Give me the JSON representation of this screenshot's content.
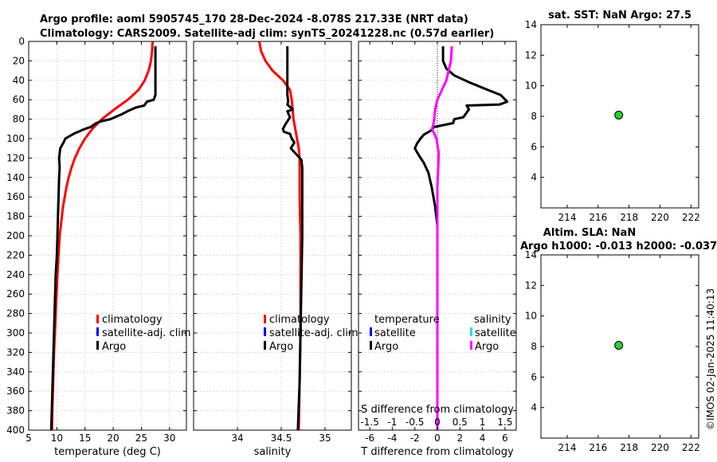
{
  "titles": {
    "line1": "Argo profile: aoml 5905745_170 28-Dec-2024 -8.078S 217.33E (NRT data)",
    "line2": "Climatology: CARS2009. Satellite-adj clim: synTS_20241228.nc (0.57d earlier)",
    "sst": "sat. SST: NaN Argo: 27.5",
    "sla": "Altim. SLA: NaN",
    "h": "Argo h1000: -0.013 h2000: -0.037"
  },
  "watermark": "©IMOS 02-Jan-2025 11:40:13",
  "colors": {
    "climatology": "#ff0000",
    "satellite": "#0000ff",
    "argo": "#000000",
    "sat_sal": "#00e5ee",
    "argo_sal": "#ff00ff",
    "marker": "#33cc33"
  },
  "legend": {
    "climatology": "climatology",
    "satellite_adj": "satellite-adj. clim",
    "argo": "Argo",
    "temperature": "temperature",
    "salinity": "salinity",
    "satellite": "satellite"
  },
  "chart_data": [
    {
      "id": "temperature",
      "type": "line",
      "xlabel": "temperature (deg C)",
      "ylabel": "",
      "xlim": [
        5,
        33
      ],
      "ylim": [
        400,
        0
      ],
      "xticks": [
        5,
        10,
        15,
        20,
        25,
        30
      ],
      "yticks": [
        0,
        20,
        40,
        60,
        80,
        100,
        120,
        140,
        160,
        180,
        200,
        220,
        240,
        260,
        280,
        300,
        320,
        340,
        360,
        380,
        400
      ],
      "series": [
        {
          "name": "climatology",
          "color": "#ff0000",
          "points": [
            [
              27.0,
              0
            ],
            [
              26.9,
              10
            ],
            [
              26.7,
              20
            ],
            [
              26.3,
              30
            ],
            [
              25.6,
              40
            ],
            [
              24.5,
              50
            ],
            [
              22.6,
              60
            ],
            [
              20.2,
              70
            ],
            [
              18.0,
              80
            ],
            [
              16.3,
              90
            ],
            [
              15.0,
              100
            ],
            [
              14.0,
              110
            ],
            [
              13.2,
              120
            ],
            [
              12.6,
              130
            ],
            [
              12.1,
              140
            ],
            [
              11.7,
              150
            ],
            [
              11.4,
              160
            ],
            [
              11.1,
              170
            ],
            [
              10.9,
              180
            ],
            [
              10.7,
              190
            ],
            [
              10.5,
              200
            ],
            [
              10.3,
              220
            ],
            [
              10.1,
              240
            ],
            [
              9.95,
              260
            ],
            [
              9.8,
              280
            ],
            [
              9.65,
              300
            ],
            [
              9.5,
              320
            ],
            [
              9.4,
              340
            ],
            [
              9.3,
              360
            ],
            [
              9.2,
              380
            ],
            [
              9.15,
              400
            ]
          ]
        },
        {
          "name": "argo",
          "color": "#000000",
          "points": [
            [
              27.5,
              5
            ],
            [
              27.5,
              20
            ],
            [
              27.5,
              40
            ],
            [
              27.5,
              55
            ],
            [
              27.2,
              60
            ],
            [
              26.0,
              62
            ],
            [
              25.5,
              66
            ],
            [
              24.0,
              68
            ],
            [
              22.5,
              72
            ],
            [
              21.5,
              75
            ],
            [
              19.5,
              80
            ],
            [
              18.0,
              82
            ],
            [
              17.0,
              84
            ],
            [
              16.0,
              88
            ],
            [
              15.0,
              90
            ],
            [
              13.0,
              95
            ],
            [
              11.5,
              100
            ],
            [
              11.2,
              104
            ],
            [
              10.6,
              110
            ],
            [
              10.4,
              120
            ],
            [
              10.5,
              130
            ],
            [
              10.4,
              140
            ],
            [
              10.3,
              160
            ],
            [
              10.2,
              180
            ],
            [
              10.1,
              200
            ],
            [
              10.0,
              220
            ],
            [
              9.8,
              240
            ],
            [
              9.7,
              260
            ],
            [
              9.6,
              280
            ],
            [
              9.5,
              300
            ],
            [
              9.4,
              320
            ],
            [
              9.3,
              340
            ],
            [
              9.2,
              360
            ],
            [
              9.1,
              380
            ],
            [
              9.0,
              400
            ]
          ]
        }
      ],
      "legend_entries": [
        "climatology",
        "satellite-adj. clim",
        "Argo"
      ]
    },
    {
      "id": "salinity",
      "type": "line",
      "xlabel": "salinity",
      "ylabel": "",
      "xlim": [
        33.5,
        35.3
      ],
      "ylim": [
        400,
        0
      ],
      "xticks": [
        34,
        34.5,
        35
      ],
      "series": [
        {
          "name": "climatology",
          "color": "#ff0000",
          "points": [
            [
              34.25,
              0
            ],
            [
              34.27,
              10
            ],
            [
              34.32,
              20
            ],
            [
              34.4,
              30
            ],
            [
              34.52,
              40
            ],
            [
              34.6,
              50
            ],
            [
              34.62,
              60
            ],
            [
              34.63,
              70
            ],
            [
              34.64,
              80
            ],
            [
              34.66,
              90
            ],
            [
              34.68,
              100
            ],
            [
              34.7,
              110
            ],
            [
              34.71,
              120
            ],
            [
              34.71,
              140
            ],
            [
              34.71,
              160
            ],
            [
              34.72,
              200
            ],
            [
              34.72,
              250
            ],
            [
              34.72,
              300
            ],
            [
              34.71,
              350
            ],
            [
              34.7,
              400
            ]
          ]
        },
        {
          "name": "argo",
          "color": "#000000",
          "points": [
            [
              34.57,
              5
            ],
            [
              34.57,
              20
            ],
            [
              34.57,
              40
            ],
            [
              34.57,
              55
            ],
            [
              34.58,
              62
            ],
            [
              34.57,
              65
            ],
            [
              34.63,
              70
            ],
            [
              34.57,
              72
            ],
            [
              34.6,
              78
            ],
            [
              34.55,
              85
            ],
            [
              34.52,
              90
            ],
            [
              34.53,
              93
            ],
            [
              34.6,
              95
            ],
            [
              34.62,
              100
            ],
            [
              34.65,
              104
            ],
            [
              34.61,
              110
            ],
            [
              34.66,
              115
            ],
            [
              34.73,
              122
            ],
            [
              34.74,
              130
            ],
            [
              34.74,
              140
            ],
            [
              34.74,
              160
            ],
            [
              34.74,
              200
            ],
            [
              34.73,
              250
            ],
            [
              34.72,
              300
            ],
            [
              34.71,
              350
            ],
            [
              34.69,
              400
            ]
          ]
        }
      ],
      "legend_entries": [
        "climatology",
        "satellite-adj. clim",
        "Argo"
      ]
    },
    {
      "id": "difference",
      "type": "line",
      "xlabel": "T difference from climatology",
      "x2label": "S difference from climatology",
      "xlim": [
        -7,
        7
      ],
      "x2lim": [
        -1.75,
        1.75
      ],
      "ylim": [
        400,
        0
      ],
      "xticks": [
        -6,
        -4,
        -2,
        0,
        2,
        4,
        6
      ],
      "x2ticks": [
        -1.5,
        -1,
        -0.5,
        0,
        0.5,
        1,
        1.5
      ],
      "x2ticklabels": [
        "-1.5",
        "-1",
        "-0.5",
        "0",
        "0.5",
        "1",
        "1.5"
      ],
      "series": [
        {
          "name": "temperature Argo",
          "color": "#000000",
          "axis": "T",
          "points": [
            [
              0.5,
              5
            ],
            [
              0.5,
              20
            ],
            [
              0.8,
              28
            ],
            [
              1.5,
              35
            ],
            [
              2.8,
              42
            ],
            [
              4.5,
              50
            ],
            [
              5.6,
              55
            ],
            [
              6.2,
              62
            ],
            [
              5.5,
              65
            ],
            [
              2.6,
              66
            ],
            [
              2.8,
              70
            ],
            [
              2.3,
              78
            ],
            [
              1.5,
              80
            ],
            [
              1.4,
              84
            ],
            [
              0.6,
              86
            ],
            [
              -0.3,
              88
            ],
            [
              -0.6,
              92
            ],
            [
              -1.2,
              96
            ],
            [
              -1.5,
              100
            ],
            [
              -1.8,
              105
            ],
            [
              -2.0,
              110
            ],
            [
              -1.6,
              118
            ],
            [
              -1.2,
              125
            ],
            [
              -0.8,
              135
            ],
            [
              -0.5,
              150
            ],
            [
              -0.2,
              170
            ],
            [
              0.0,
              190
            ],
            [
              0.0,
              400
            ]
          ]
        },
        {
          "name": "salinity Argo",
          "color": "#ff00ff",
          "axis": "S",
          "points": [
            [
              0.32,
              5
            ],
            [
              0.3,
              20
            ],
            [
              0.2,
              40
            ],
            [
              0.0,
              60
            ],
            [
              -0.05,
              70
            ],
            [
              -0.07,
              80
            ],
            [
              -0.09,
              86
            ],
            [
              -0.12,
              90
            ],
            [
              -0.02,
              100
            ],
            [
              0.03,
              115
            ],
            [
              0.02,
              130
            ],
            [
              0.0,
              150
            ],
            [
              0.0,
              200
            ],
            [
              0.0,
              400
            ]
          ]
        }
      ],
      "legend_entries": [
        "temperature",
        "satellite",
        "Argo",
        "salinity",
        "satellite",
        "Argo"
      ]
    },
    {
      "id": "sst_location",
      "type": "scatter",
      "title": "sat. SST: NaN Argo: 27.5",
      "xlim": [
        212.3,
        222.5
      ],
      "ylim": [
        2,
        14
      ],
      "xticks": [
        214,
        216,
        218,
        220,
        222
      ],
      "yticks": [
        4,
        6,
        8,
        10,
        12,
        14
      ],
      "points": [
        {
          "lon": 217.33,
          "lat": 8.078
        }
      ]
    },
    {
      "id": "sla_location",
      "type": "scatter",
      "title": "Altim. SLA: NaN",
      "xlim": [
        212.3,
        222.5
      ],
      "ylim": [
        2,
        14
      ],
      "xticks": [
        214,
        216,
        218,
        220,
        222
      ],
      "yticks": [
        4,
        6,
        8,
        10,
        12,
        14
      ],
      "points": [
        {
          "lon": 217.33,
          "lat": 8.078
        }
      ]
    }
  ]
}
